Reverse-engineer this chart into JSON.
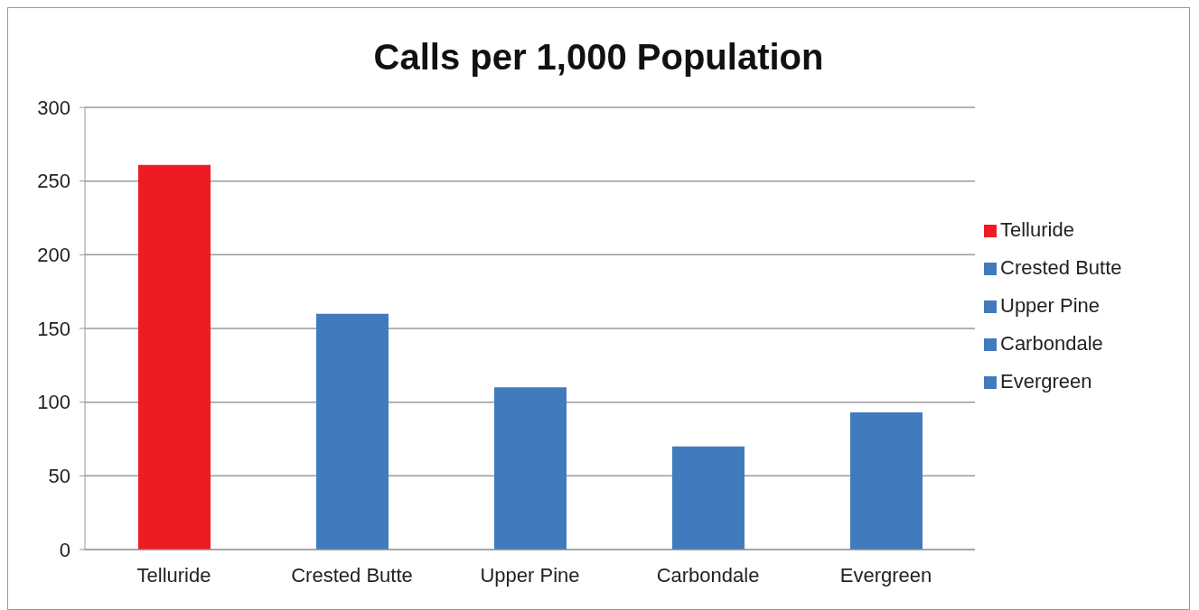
{
  "chart_data": {
    "type": "bar",
    "title": "Calls per 1,000 Population",
    "categories": [
      "Telluride",
      "Crested Butte",
      "Upper Pine",
      "Carbondale",
      "Evergreen"
    ],
    "stacked": true,
    "series": [
      {
        "name": "Telluride",
        "color": "#ed1c24",
        "values": [
          261,
          null,
          null,
          null,
          null
        ]
      },
      {
        "name": "Crested Butte",
        "color": "#417bbd",
        "values": [
          null,
          160,
          null,
          null,
          null
        ]
      },
      {
        "name": "Upper Pine",
        "color": "#417bbd",
        "values": [
          null,
          null,
          110,
          null,
          null
        ]
      },
      {
        "name": "Carbondale",
        "color": "#417bbd",
        "values": [
          null,
          null,
          null,
          70,
          null
        ]
      },
      {
        "name": "Evergreen",
        "color": "#417bbd",
        "values": [
          null,
          null,
          null,
          null,
          93
        ]
      }
    ],
    "ylim": [
      0,
      300
    ],
    "yticks": [
      0,
      50,
      100,
      150,
      200,
      250,
      300
    ],
    "grid": "y",
    "legend": "right"
  }
}
